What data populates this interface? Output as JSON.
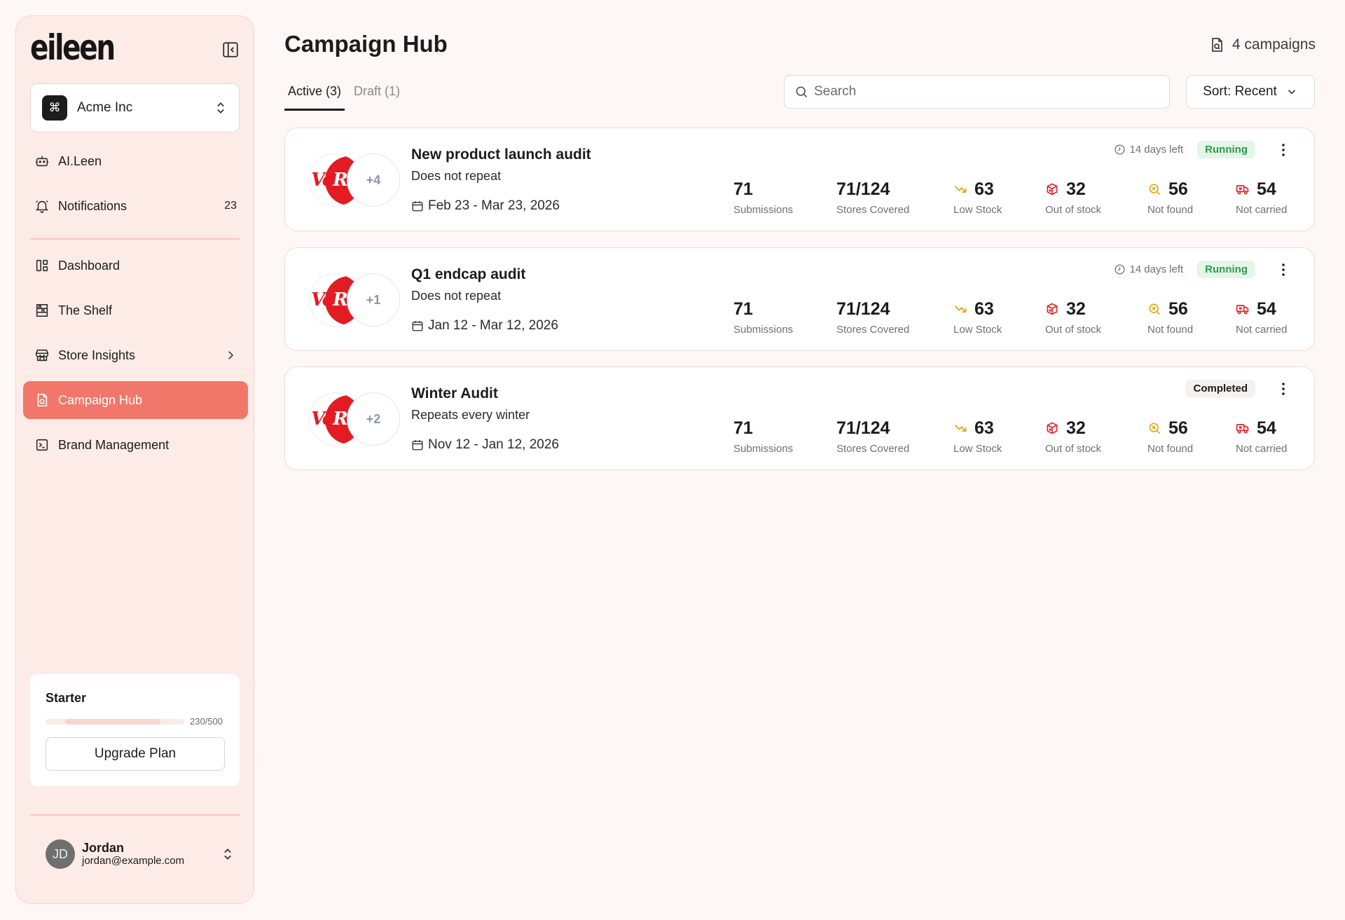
{
  "sidebar": {
    "logo": "eileen",
    "org": {
      "icon": "⌘",
      "name": "Acme Inc"
    },
    "nav": [
      {
        "label": "AI.Leen",
        "icon": "robot-icon"
      },
      {
        "label": "Notifications",
        "icon": "bell-icon",
        "count": "23"
      },
      {
        "label": "Dashboard",
        "icon": "dashboard-icon"
      },
      {
        "label": "The Shelf",
        "icon": "shelf-icon"
      },
      {
        "label": "Store Insights",
        "icon": "store-icon"
      },
      {
        "label": "Campaign Hub",
        "icon": "campaign-icon"
      },
      {
        "label": "Brand Management",
        "icon": "brand-icon"
      }
    ],
    "plan": {
      "name": "Starter",
      "used": 230,
      "limit": 500,
      "usage_text": "230/500",
      "upgrade_label": "Upgrade Plan"
    },
    "user": {
      "initials": "JD",
      "name": "Jordan",
      "email": "jordan@example.com"
    }
  },
  "header": {
    "title": "Campaign Hub",
    "campaign_count": "4 campaigns",
    "tabs": [
      {
        "label": "Active (3)"
      },
      {
        "label": "Draft (1)"
      }
    ],
    "search": {
      "placeholder": "Search",
      "value": ""
    },
    "sort_label": "Sort: Recent"
  },
  "colors": {
    "accent": "#f0776a",
    "running_bg": "#e3f6e7",
    "running_text": "#2f9a4a",
    "low_stock": "#e8a60b",
    "alert_red": "#e3242b"
  },
  "stat_labels": {
    "submissions": "Submissions",
    "stores": "Stores Covered",
    "low_stock": "Low Stock",
    "out_of_stock": "Out of stock",
    "not_found": "Not found",
    "not_carried": "Not carried"
  },
  "campaigns": [
    {
      "title": "New product launch audit",
      "repeat": "Does not repeat",
      "dates": "Feb 23 - Mar 23, 2026",
      "logo_more": "+4",
      "days_left": "14 days left",
      "status": "Running",
      "stats": {
        "submissions": "71",
        "stores": "71/124",
        "low_stock": "63",
        "out_of_stock": "32",
        "not_found": "56",
        "not_carried": "54"
      }
    },
    {
      "title": "Q1 endcap audit",
      "repeat": "Does not repeat",
      "dates": "Jan 12 - Mar 12, 2026",
      "logo_more": "+1",
      "days_left": "14 days left",
      "status": "Running",
      "stats": {
        "submissions": "71",
        "stores": "71/124",
        "low_stock": "63",
        "out_of_stock": "32",
        "not_found": "56",
        "not_carried": "54"
      }
    },
    {
      "title": "Winter Audit",
      "repeat": "Repeats every winter",
      "dates": "Nov 12 - Jan 12, 2026",
      "logo_more": "+2",
      "days_left": "",
      "status": "Completed",
      "stats": {
        "submissions": "71",
        "stores": "71/124",
        "low_stock": "63",
        "out_of_stock": "32",
        "not_found": "56",
        "not_carried": "54"
      }
    }
  ]
}
